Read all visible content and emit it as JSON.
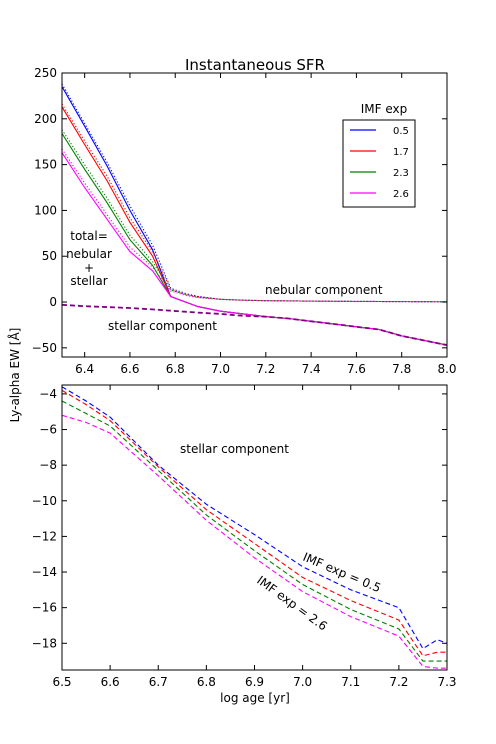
{
  "title": "Instantaneous SFR",
  "ylabel": "Ly-alpha EW [Å]",
  "xlabel": "log age [yr]",
  "colors": {
    "0.5": "#0000ff",
    "1.7": "#ff0000",
    "2.3": "#008000",
    "2.6": "#ff00ff",
    "purple": "#800080"
  },
  "chart_data": [
    {
      "type": "line",
      "title": "Instantaneous SFR",
      "xlabel": "",
      "ylabel": "Ly-alpha EW [Å]",
      "xlim": [
        6.3,
        8.0
      ],
      "ylim": [
        -60,
        250
      ],
      "xticks": [
        6.4,
        6.6,
        6.8,
        7.0,
        7.2,
        7.4,
        7.6,
        7.8,
        8.0
      ],
      "xtick_labels": [
        "6.4",
        "6.6",
        "6.8",
        "7.0",
        "7.2",
        "7.4",
        "7.6",
        "7.8",
        "8.0"
      ],
      "yticks": [
        -50,
        0,
        50,
        100,
        150,
        200,
        250
      ],
      "ytick_labels": [
        "−50",
        "0",
        "50",
        "100",
        "150",
        "200",
        "250"
      ],
      "grid": false,
      "legend": {
        "title": "IMF exp",
        "placement": "top-right",
        "entries": [
          "0.5",
          "1.7",
          "2.3",
          "2.6"
        ]
      },
      "annotations": {
        "total_line1": "total=",
        "total_line2": "nebular",
        "total_line3": "+",
        "total_line4": "stellar",
        "nebular": "nebular component",
        "stellar": "stellar component"
      },
      "series": [
        {
          "name": "0.5",
          "color": "#0000ff",
          "style": "solid",
          "x": [
            6.3,
            6.4,
            6.5,
            6.6,
            6.7,
            6.78,
            6.9,
            7.0,
            7.1,
            7.2,
            7.3,
            7.4,
            7.5,
            7.6,
            7.7,
            7.8,
            7.9,
            8.0
          ],
          "y": [
            235,
            192,
            148,
            100,
            57,
            6,
            -5,
            -10,
            -13,
            -16,
            -18,
            -21,
            -24,
            -27,
            -30,
            -37,
            -42,
            -47
          ]
        },
        {
          "name": "1.7",
          "color": "#ff0000",
          "style": "solid",
          "x": [
            6.3,
            6.4,
            6.5,
            6.6,
            6.7,
            6.78,
            6.9,
            7.0,
            7.1,
            7.2,
            7.3,
            7.4,
            7.5,
            7.6,
            7.7,
            7.8,
            7.9,
            8.0
          ],
          "y": [
            213,
            172,
            132,
            87,
            50,
            6,
            -5,
            -10,
            -13,
            -16,
            -18,
            -21,
            -24,
            -27,
            -30,
            -37,
            -42,
            -47
          ]
        },
        {
          "name": "2.3",
          "color": "#008000",
          "style": "solid",
          "x": [
            6.3,
            6.4,
            6.5,
            6.6,
            6.7,
            6.78,
            6.9,
            7.0,
            7.1,
            7.2,
            7.3,
            7.4,
            7.5,
            7.6,
            7.7,
            7.8,
            7.9,
            8.0
          ],
          "y": [
            184,
            145,
            108,
            68,
            40,
            6,
            -5,
            -10,
            -13,
            -16,
            -18,
            -21,
            -24,
            -27,
            -30,
            -37,
            -42,
            -47
          ]
        },
        {
          "name": "2.6",
          "color": "#ff00ff",
          "style": "solid",
          "x": [
            6.3,
            6.4,
            6.5,
            6.6,
            6.7,
            6.78,
            6.9,
            7.0,
            7.1,
            7.2,
            7.3,
            7.4,
            7.5,
            7.6,
            7.7,
            7.8,
            7.9,
            8.0
          ],
          "y": [
            163,
            125,
            90,
            55,
            34,
            6,
            -5,
            -10,
            -13,
            -16,
            -18,
            -21,
            -24,
            -27,
            -30,
            -37,
            -42,
            -47
          ]
        },
        {
          "name": "",
          "color": "#0000ff",
          "style": "dotted",
          "x": [
            6.3,
            6.4,
            6.5,
            6.6,
            6.7,
            6.78,
            6.85,
            6.9,
            7.0,
            7.1,
            7.2,
            7.4,
            7.6,
            7.8,
            8.0
          ],
          "y": [
            238,
            195,
            152,
            105,
            62,
            15,
            9,
            6,
            3,
            2,
            1.5,
            1,
            0.7,
            0.5,
            0.3
          ]
        },
        {
          "name": "",
          "color": "#ff0000",
          "style": "dotted",
          "x": [
            6.3,
            6.4,
            6.5,
            6.6,
            6.7,
            6.78,
            6.85,
            6.9,
            7.0,
            7.1,
            7.2,
            7.4,
            7.6,
            7.8,
            8.0
          ],
          "y": [
            216,
            176,
            137,
            92,
            55,
            14,
            8,
            6,
            3,
            2,
            1.5,
            1,
            0.7,
            0.5,
            0.3
          ]
        },
        {
          "name": "",
          "color": "#008000",
          "style": "dotted",
          "x": [
            6.3,
            6.4,
            6.5,
            6.6,
            6.7,
            6.78,
            6.85,
            6.9,
            7.0,
            7.1,
            7.2,
            7.4,
            7.6,
            7.8,
            8.0
          ],
          "y": [
            188,
            150,
            113,
            73,
            44,
            13,
            8,
            5,
            3,
            2,
            1.5,
            1,
            0.7,
            0.5,
            0.3
          ]
        },
        {
          "name": "",
          "color": "#ff00ff",
          "style": "dotted",
          "x": [
            6.3,
            6.4,
            6.5,
            6.6,
            6.7,
            6.78,
            6.85,
            6.9,
            7.0,
            7.1,
            7.2,
            7.4,
            7.6,
            7.8,
            8.0
          ],
          "y": [
            167,
            130,
            95,
            60,
            38,
            12,
            7,
            5,
            3,
            2,
            1.5,
            1,
            0.7,
            0.5,
            0.3
          ]
        },
        {
          "name": "",
          "color": "#800080",
          "style": "dashed",
          "x": [
            6.3,
            6.4,
            6.5,
            6.6,
            6.7,
            6.78,
            6.9,
            7.0,
            7.1,
            7.2,
            7.3,
            7.4,
            7.5,
            7.6,
            7.7,
            7.8,
            7.9,
            8.0
          ],
          "y": [
            -3,
            -4.5,
            -5.5,
            -6.5,
            -8,
            -9.5,
            -11.5,
            -13,
            -15,
            -16,
            -18,
            -21,
            -24,
            -27,
            -30,
            -37,
            -42,
            -47
          ]
        }
      ]
    },
    {
      "type": "line",
      "title": "",
      "xlabel": "log age [yr]",
      "ylabel": "",
      "xlim": [
        6.5,
        7.3
      ],
      "ylim": [
        -19.5,
        -3.5
      ],
      "xticks": [
        6.5,
        6.6,
        6.7,
        6.8,
        6.9,
        7.0,
        7.1,
        7.2,
        7.3
      ],
      "xtick_labels": [
        "6.5",
        "6.6",
        "6.7",
        "6.8",
        "6.9",
        "7.0",
        "7.1",
        "7.2",
        "7.3"
      ],
      "yticks": [
        -18,
        -16,
        -14,
        -12,
        -10,
        -8,
        -6,
        -4
      ],
      "ytick_labels": [
        "−18",
        "−16",
        "−14",
        "−12",
        "−10",
        "−8",
        "−6",
        "−4"
      ],
      "grid": false,
      "annotations": {
        "stellar": "stellar component",
        "imf_05": "IMF exp = 0.5",
        "imf_26": "IMF exp = 2.6"
      },
      "series": [
        {
          "name": "0.5",
          "color": "#0000ff",
          "style": "dashed",
          "x": [
            6.5,
            6.55,
            6.6,
            6.7,
            6.8,
            6.9,
            7.0,
            7.1,
            7.2,
            7.25,
            7.28,
            7.3
          ],
          "y": [
            -3.6,
            -4.4,
            -5.3,
            -8.0,
            -10.2,
            -11.9,
            -13.7,
            -15.0,
            -16.0,
            -18.3,
            -17.8,
            -18.0
          ]
        },
        {
          "name": "1.7",
          "color": "#ff0000",
          "style": "dashed",
          "x": [
            6.5,
            6.55,
            6.6,
            6.7,
            6.8,
            6.9,
            7.0,
            7.1,
            7.2,
            7.25,
            7.28,
            7.3
          ],
          "y": [
            -3.8,
            -4.6,
            -5.5,
            -8.1,
            -10.5,
            -12.4,
            -14.3,
            -15.6,
            -16.7,
            -18.7,
            -18.5,
            -18.5
          ]
        },
        {
          "name": "2.3",
          "color": "#008000",
          "style": "dashed",
          "x": [
            6.5,
            6.55,
            6.6,
            6.7,
            6.8,
            6.9,
            7.0,
            7.1,
            7.2,
            7.25,
            7.28,
            7.3
          ],
          "y": [
            -4.4,
            -5.1,
            -5.8,
            -8.3,
            -10.8,
            -12.8,
            -14.7,
            -16.1,
            -17.2,
            -19.0,
            -19.0,
            -19.0
          ]
        },
        {
          "name": "2.6",
          "color": "#ff00ff",
          "style": "dashed",
          "x": [
            6.5,
            6.55,
            6.6,
            6.7,
            6.8,
            6.9,
            7.0,
            7.1,
            7.2,
            7.25,
            7.28,
            7.3
          ],
          "y": [
            -5.2,
            -5.6,
            -6.2,
            -8.6,
            -11.1,
            -13.2,
            -15.1,
            -16.5,
            -17.6,
            -19.3,
            -19.4,
            -19.4
          ]
        }
      ]
    }
  ]
}
